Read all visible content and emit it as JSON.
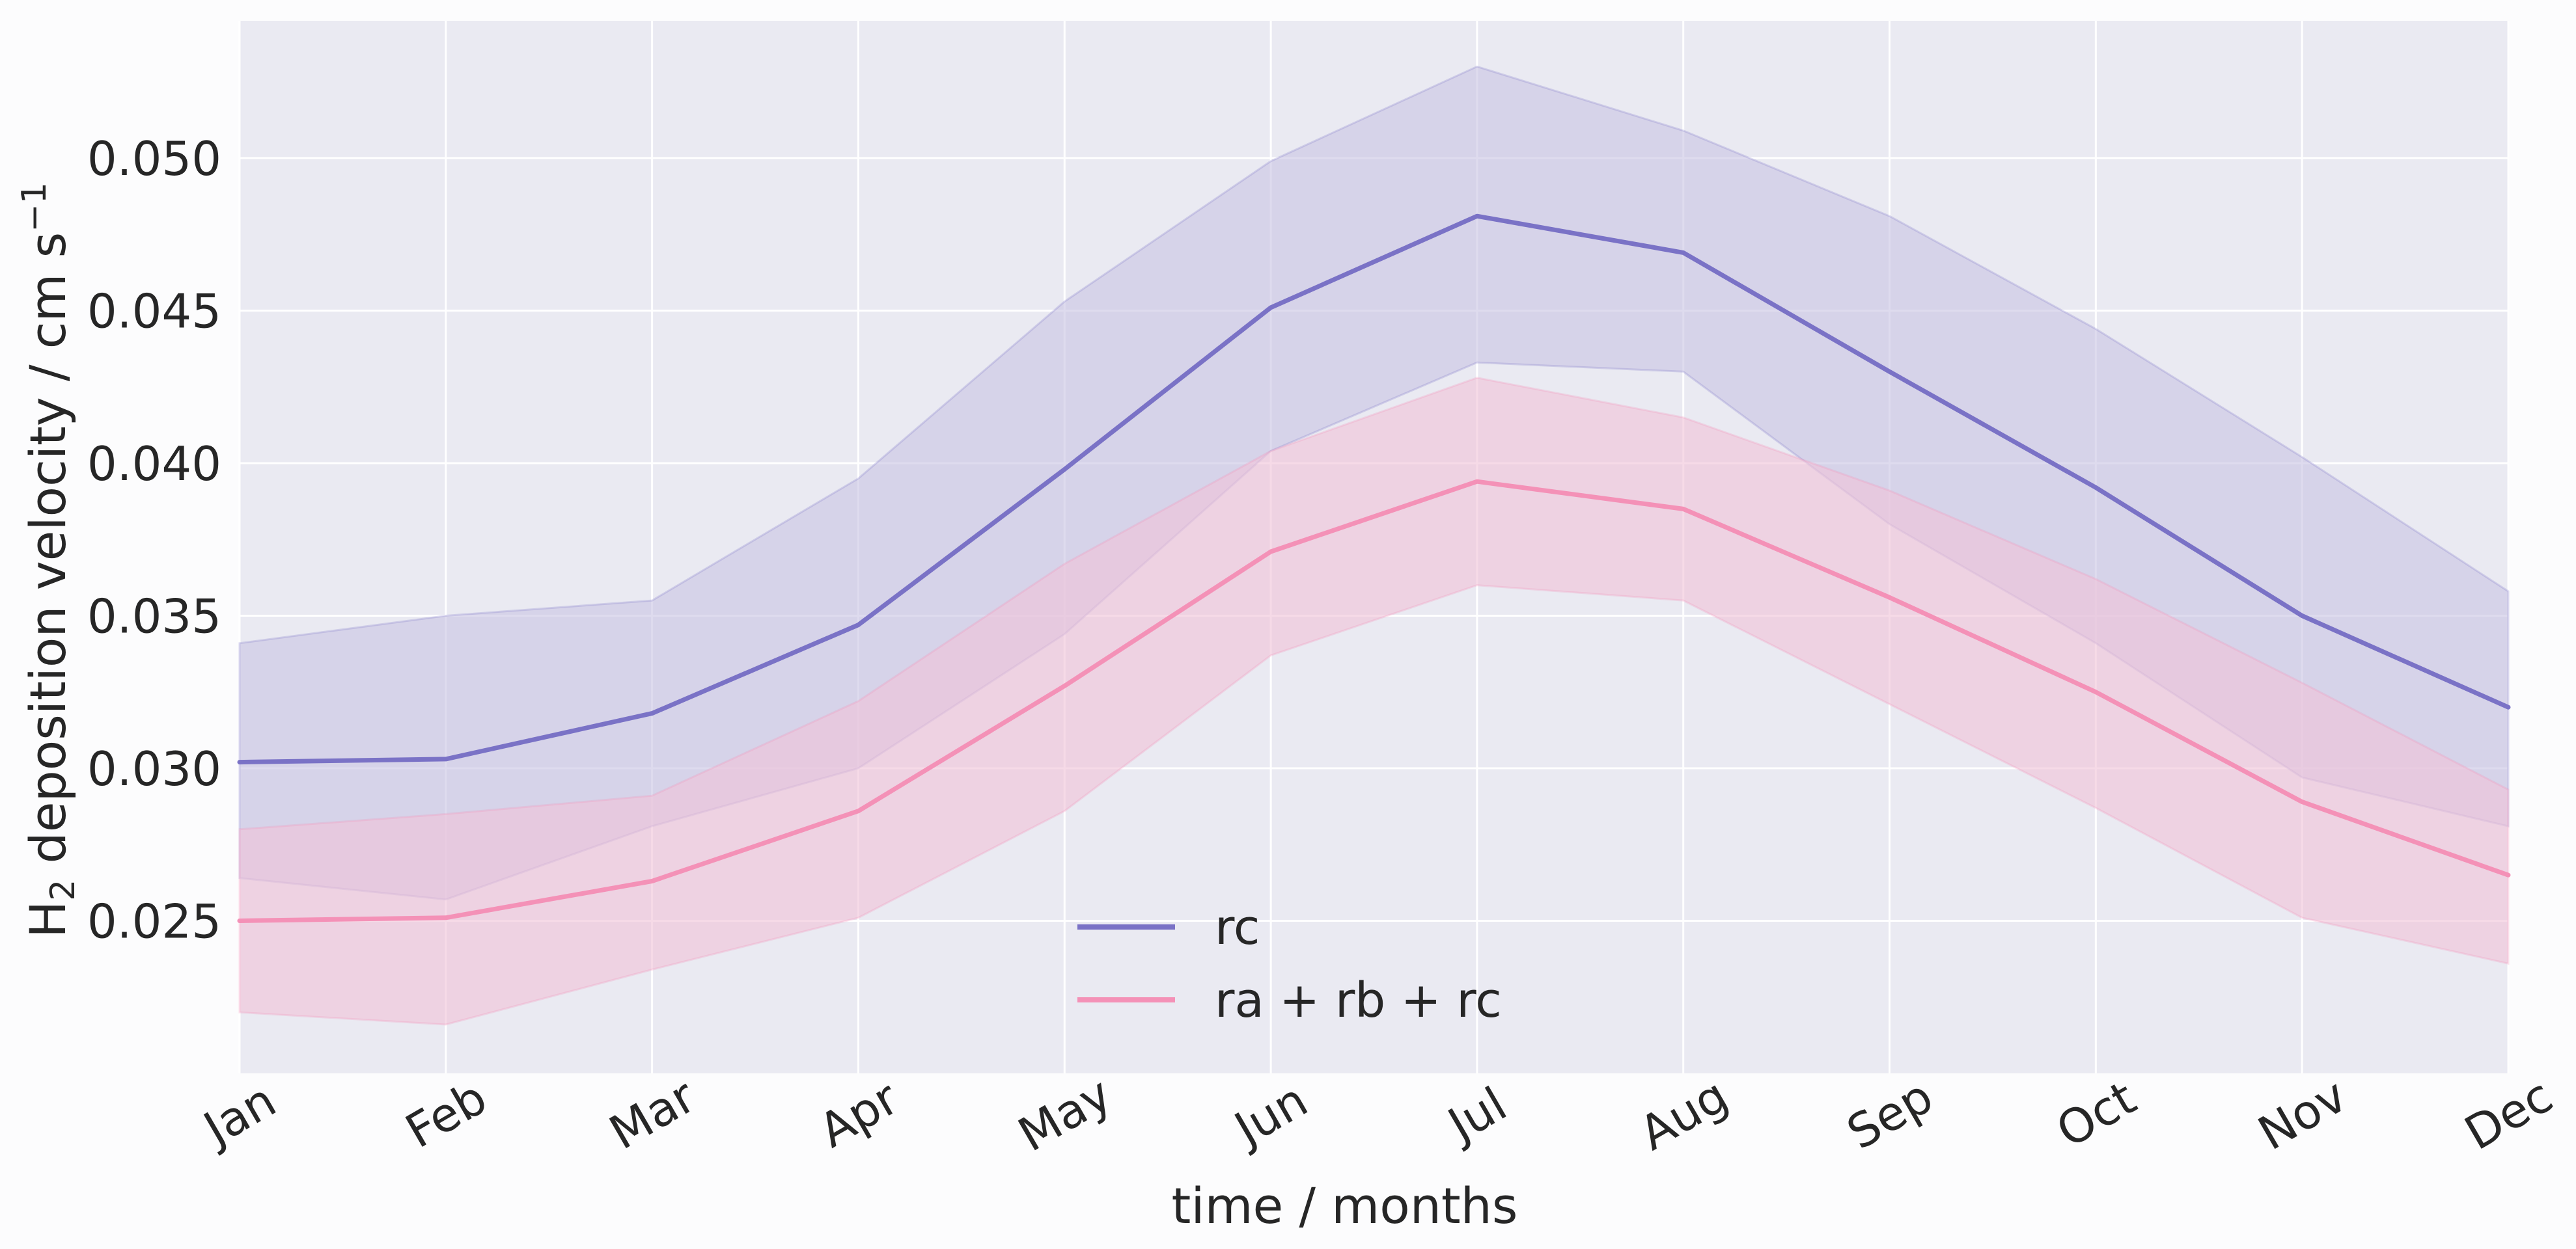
{
  "chart_data": {
    "type": "line",
    "x": [
      "Jan",
      "Feb",
      "Mar",
      "Apr",
      "May",
      "Jun",
      "Jul",
      "Aug",
      "Sep",
      "Oct",
      "Nov",
      "Dec"
    ],
    "xlabel": "time / months",
    "ylabel": {
      "prefix": "H",
      "subscript": "2",
      "text": " deposition velocity / cm s",
      "superscript": "−1"
    },
    "ylim": [
      0.02,
      0.0545
    ],
    "yticks": [
      "0.025",
      "0.030",
      "0.035",
      "0.040",
      "0.045",
      "0.050"
    ],
    "grid": true,
    "legend_position": "lower center",
    "series": [
      {
        "name": "rc",
        "color": "#7a72c6",
        "band_color": "#c9c5e4",
        "values": [
          0.0302,
          0.0303,
          0.0318,
          0.0347,
          0.0398,
          0.0451,
          0.0481,
          0.0469,
          0.043,
          0.0392,
          0.035,
          0.032
        ],
        "upper": [
          0.0341,
          0.035,
          0.0355,
          0.0395,
          0.0453,
          0.0499,
          0.053,
          0.0509,
          0.0481,
          0.0444,
          0.0402,
          0.0358
        ],
        "lower": [
          0.0264,
          0.0257,
          0.0281,
          0.03,
          0.0344,
          0.0404,
          0.0433,
          0.043,
          0.038,
          0.0341,
          0.0297,
          0.0281
        ]
      },
      {
        "name": "ra + rb + rc",
        "color": "#f491b7",
        "band_color": "#f0c4d8",
        "values": [
          0.025,
          0.0251,
          0.0263,
          0.0286,
          0.0327,
          0.0371,
          0.0394,
          0.0385,
          0.0356,
          0.0325,
          0.0289,
          0.0265
        ],
        "upper": [
          0.028,
          0.0285,
          0.0291,
          0.0322,
          0.0367,
          0.0404,
          0.0428,
          0.0415,
          0.0391,
          0.0362,
          0.0328,
          0.0293
        ],
        "lower": [
          0.022,
          0.0216,
          0.0234,
          0.0251,
          0.0286,
          0.0337,
          0.036,
          0.0355,
          0.0321,
          0.0287,
          0.0251,
          0.0236
        ]
      }
    ]
  }
}
